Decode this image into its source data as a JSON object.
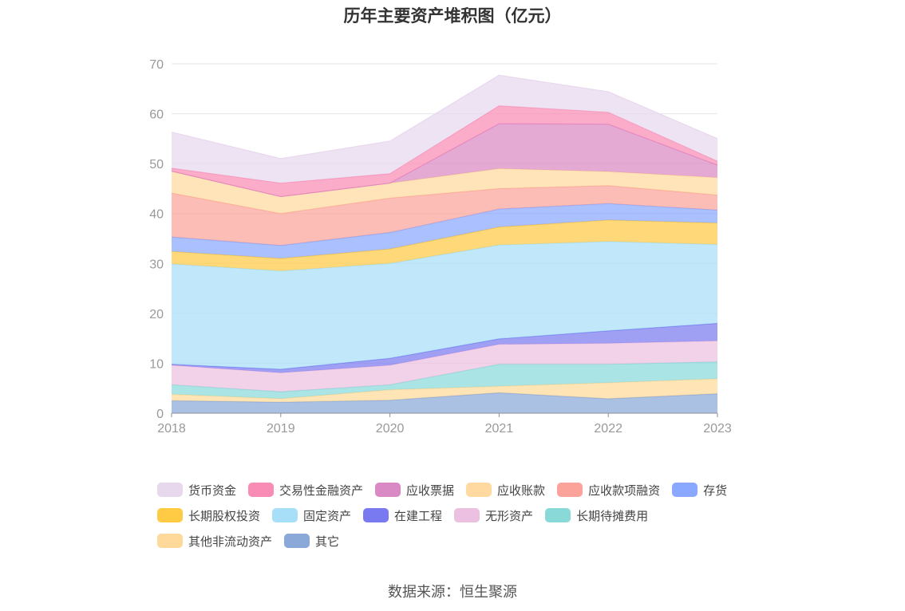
{
  "chart_data": {
    "type": "area",
    "title": "历年主要资产堆积图（亿元）",
    "x": [
      "2018",
      "2019",
      "2020",
      "2021",
      "2022",
      "2023"
    ],
    "ylim": [
      0,
      70
    ],
    "yticks": [
      "0",
      "10",
      "20",
      "30",
      "40",
      "50",
      "60",
      "70"
    ],
    "grid": "horizontal",
    "legend_position": "bottom",
    "stacked": true,
    "series": [
      {
        "name": "其它",
        "color": "#8aa9d8",
        "values": [
          2.5,
          2.2,
          2.6,
          4.1,
          2.9,
          3.9
        ]
      },
      {
        "name": "其他非流动资产",
        "color": "#ffd99a",
        "values": [
          1.3,
          0.7,
          2.1,
          1.3,
          3.2,
          3.0
        ]
      },
      {
        "name": "长期待摊费用",
        "color": "#8ad9d9",
        "values": [
          1.9,
          1.4,
          1.0,
          4.4,
          3.7,
          3.4
        ]
      },
      {
        "name": "无形资产",
        "color": "#ecc0e0",
        "values": [
          3.9,
          3.8,
          3.9,
          4.0,
          4.2,
          4.2
        ]
      },
      {
        "name": "在建工程",
        "color": "#7a7af0",
        "values": [
          0.2,
          0.7,
          1.4,
          1.1,
          2.5,
          3.5
        ]
      },
      {
        "name": "固定资产",
        "color": "#a8dff8",
        "values": [
          20.1,
          19.7,
          19.0,
          18.8,
          17.9,
          15.8
        ]
      },
      {
        "name": "长期股权投资",
        "color": "#ffcb45",
        "values": [
          2.5,
          2.5,
          2.9,
          3.6,
          4.3,
          4.3
        ]
      },
      {
        "name": "存货",
        "color": "#8aa8ff",
        "values": [
          2.9,
          2.6,
          3.3,
          3.6,
          3.3,
          2.6
        ]
      },
      {
        "name": "应收款项融资",
        "color": "#fba39a",
        "values": [
          8.8,
          6.4,
          6.9,
          4.1,
          3.6,
          3.0
        ]
      },
      {
        "name": "应收账款",
        "color": "#ffd9a0",
        "values": [
          4.4,
          3.4,
          3.0,
          4.0,
          2.8,
          3.5
        ]
      },
      {
        "name": "应收票据",
        "color": "#d989c4",
        "values": [
          0.0,
          0.0,
          0.0,
          9.0,
          9.5,
          2.5
        ]
      },
      {
        "name": "交易性金融资产",
        "color": "#f98cb4",
        "values": [
          0.6,
          2.7,
          1.9,
          3.6,
          2.4,
          0.8
        ]
      },
      {
        "name": "货币资金",
        "color": "#e8d8ee",
        "values": [
          7.2,
          4.9,
          6.5,
          6.1,
          4.1,
          4.5
        ]
      }
    ]
  },
  "legend": {
    "rows": [
      [
        "货币资金",
        "交易性金融资产",
        "应收票据",
        "应收账款",
        "应收款项融资",
        "存货"
      ],
      [
        "长期股权投资",
        "固定资产",
        "在建工程",
        "无形资产",
        "长期待摊费用"
      ],
      [
        "其他非流动资产",
        "其它"
      ]
    ]
  },
  "source": "数据来源：恒生聚源"
}
